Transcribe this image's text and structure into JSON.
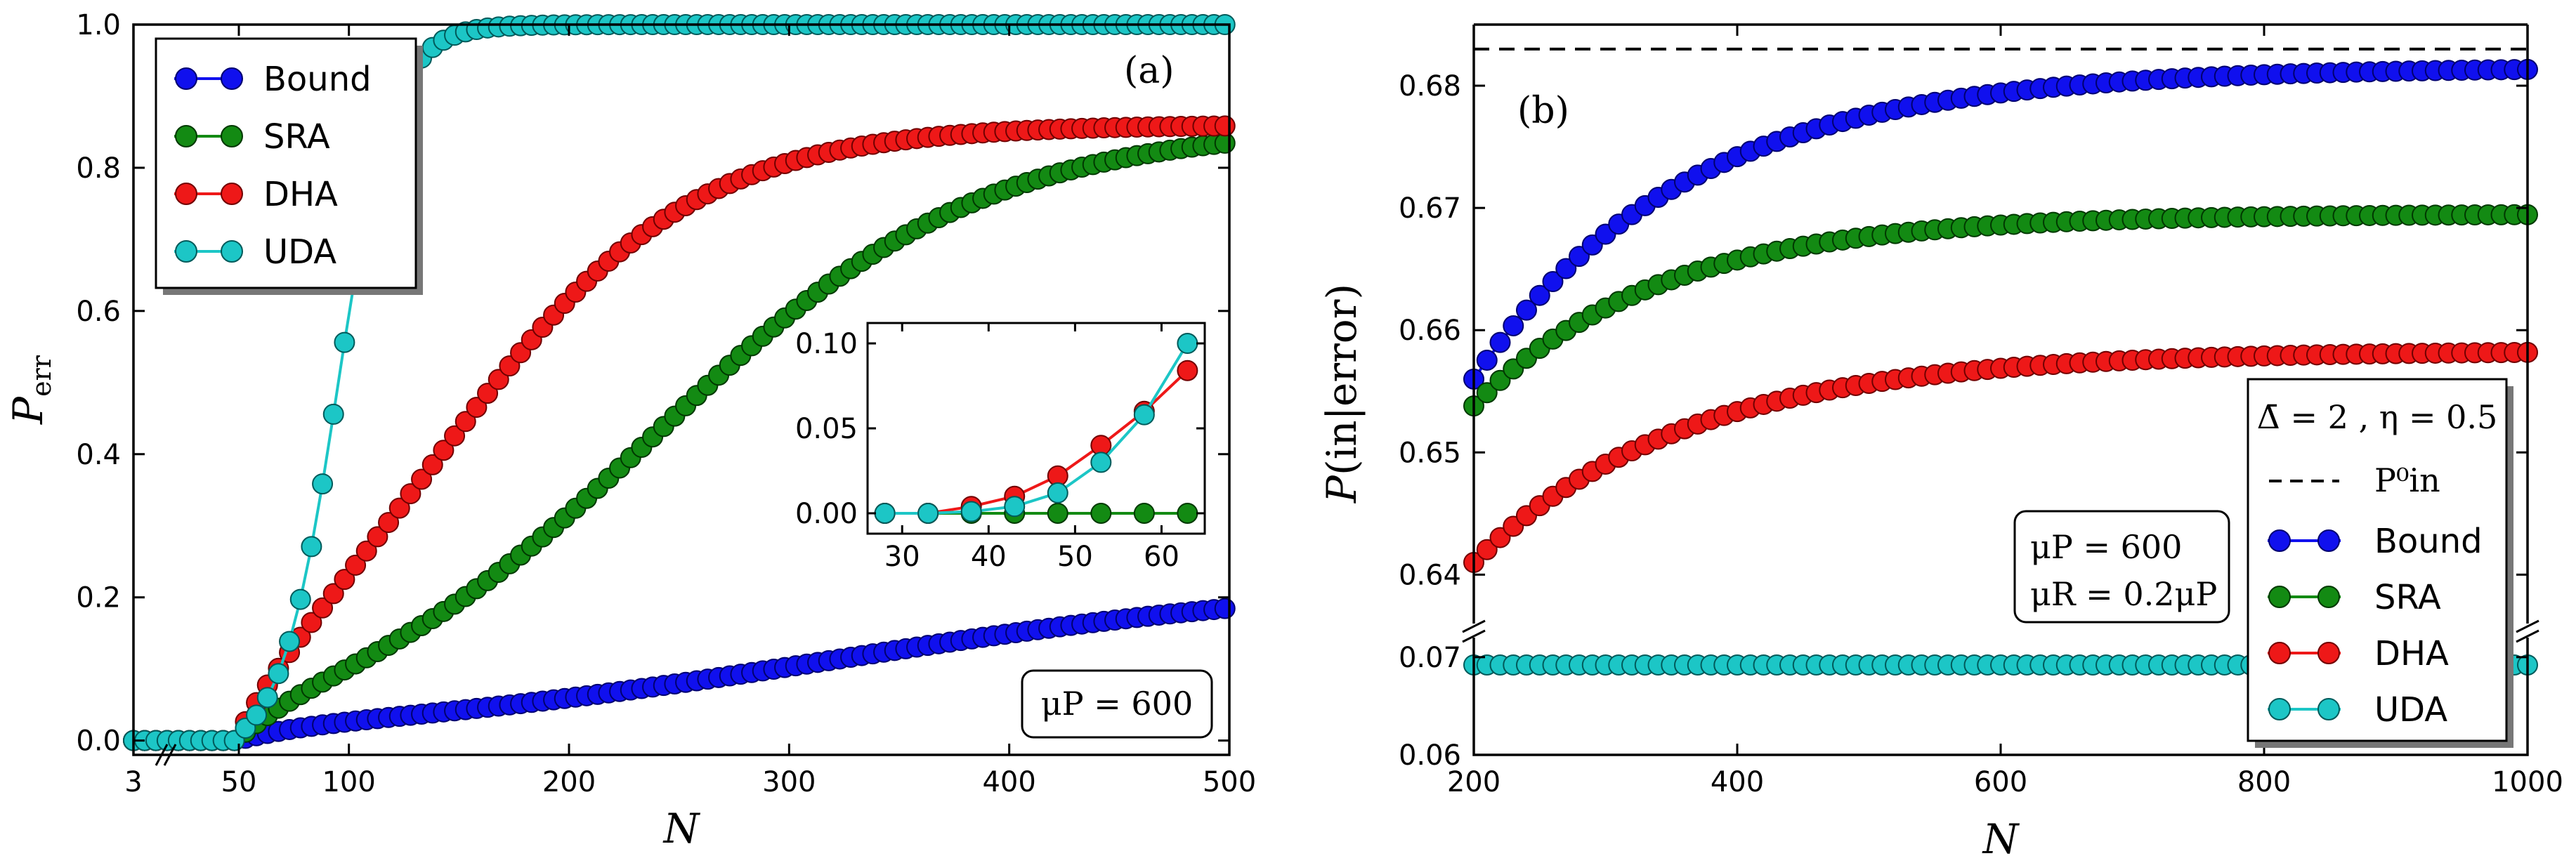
{
  "colors": {
    "Bound": "#1010ee",
    "SRA": "#138a13",
    "DHA": "#ee1818",
    "UDA": "#1cc6c6"
  },
  "chart_data": [
    {
      "type": "line",
      "panel_label": "(a)",
      "xlabel": "N",
      "ylabel": "P_err",
      "xlim": [
        3,
        500
      ],
      "ylim": [
        -0.02,
        1.0
      ],
      "xticks": [
        3,
        50,
        100,
        200,
        300,
        400,
        500
      ],
      "yticks": [
        0.0,
        0.2,
        0.4,
        0.6,
        0.8,
        1.0
      ],
      "x_axis_note": "axis broken between 3 and 50",
      "legend": [
        "Bound",
        "SRA",
        "DHA",
        "UDA"
      ],
      "legend_position": "upper-left",
      "annotation": "μP = 600",
      "series": [
        {
          "name": "Bound",
          "sigmoid": {
            "L": 0.225,
            "k": 0.0085,
            "x0": 320
          },
          "x": [
            3,
            500
          ]
        },
        {
          "name": "SRA",
          "sigmoid": {
            "L": 0.86,
            "k": 0.0135,
            "x0": 240
          },
          "x": [
            3,
            500
          ]
        },
        {
          "name": "DHA",
          "sigmoid": {
            "L": 0.86,
            "k": 0.018,
            "x0": 148
          },
          "x": [
            3,
            500
          ]
        },
        {
          "name": "UDA",
          "sigmoid": {
            "L": 1.0,
            "k": 0.08,
            "x0": 95
          },
          "x": [
            3,
            500
          ]
        }
      ],
      "inset": {
        "xlim": [
          26,
          65
        ],
        "ylim": [
          -0.012,
          0.112
        ],
        "xticks": [
          30,
          40,
          50,
          60
        ],
        "yticks": [
          "0.00",
          "0.05",
          "0.10"
        ],
        "x": [
          28,
          33,
          38,
          43,
          48,
          53,
          58,
          63
        ],
        "series": [
          {
            "name": "SRA",
            "values": [
              0,
              0,
              0,
              0,
              0,
              0,
              0,
              0
            ]
          },
          {
            "name": "DHA",
            "values": [
              0,
              0,
              0.004,
              0.01,
              0.022,
              0.04,
              0.06,
              0.084
            ]
          },
          {
            "name": "UDA",
            "values": [
              0,
              0,
              0.001,
              0.004,
              0.012,
              0.03,
              0.058,
              0.1
            ]
          }
        ]
      }
    },
    {
      "type": "line",
      "panel_label": "(b)",
      "xlabel": "N",
      "ylabel": "P(in|error)",
      "xlim": [
        200,
        1000
      ],
      "ylim_upper": [
        0.636,
        0.685
      ],
      "ylim_lower": [
        0.06,
        0.072
      ],
      "yticks_upper": [
        0.64,
        0.65,
        0.66,
        0.67,
        0.68
      ],
      "yticks_lower": [
        0.06,
        0.07
      ],
      "xticks": [
        200,
        400,
        600,
        800,
        1000
      ],
      "y_axis_note": "axis broken between 0.07 and 0.64",
      "legend_title": "Δ̄ = 2 , η = 0.5",
      "legend": [
        "P⁰in",
        "Bound",
        "SRA",
        "DHA",
        "UDA"
      ],
      "legend_position": "lower-right",
      "annotation": [
        "μP = 600",
        "μR = 0.2 μP"
      ],
      "reference_line": {
        "name": "P⁰in",
        "value": 0.683
      },
      "series": [
        {
          "name": "Bound",
          "model": "a - b*exp(-(N-200)/c)",
          "a": 0.6815,
          "b": 0.0255,
          "c": 160
        },
        {
          "name": "SRA",
          "model": "a - b*exp(-(N-200)/c)",
          "a": 0.6695,
          "b": 0.0157,
          "c": 140
        },
        {
          "name": "DHA",
          "model": "a - b*exp(-(N-200)/c)",
          "a": 0.6583,
          "b": 0.0173,
          "c": 160
        },
        {
          "name": "UDA",
          "values_constant": 0.0692
        }
      ]
    }
  ],
  "labels": {
    "a_panel": "(a)",
    "b_panel": "(b)",
    "a_xlabel": "N",
    "b_xlabel": "N",
    "a_annot": "μP = 600",
    "b_annot1": "μP = 600",
    "b_annot2": "μR = 0.2μP",
    "b_leg_title": "Δ̄ = 2 , η = 0.5",
    "b_leg_ref": "P⁰in",
    "leg_bound": "Bound",
    "leg_sra": "SRA",
    "leg_dha": "DHA",
    "leg_uda": "UDA"
  }
}
